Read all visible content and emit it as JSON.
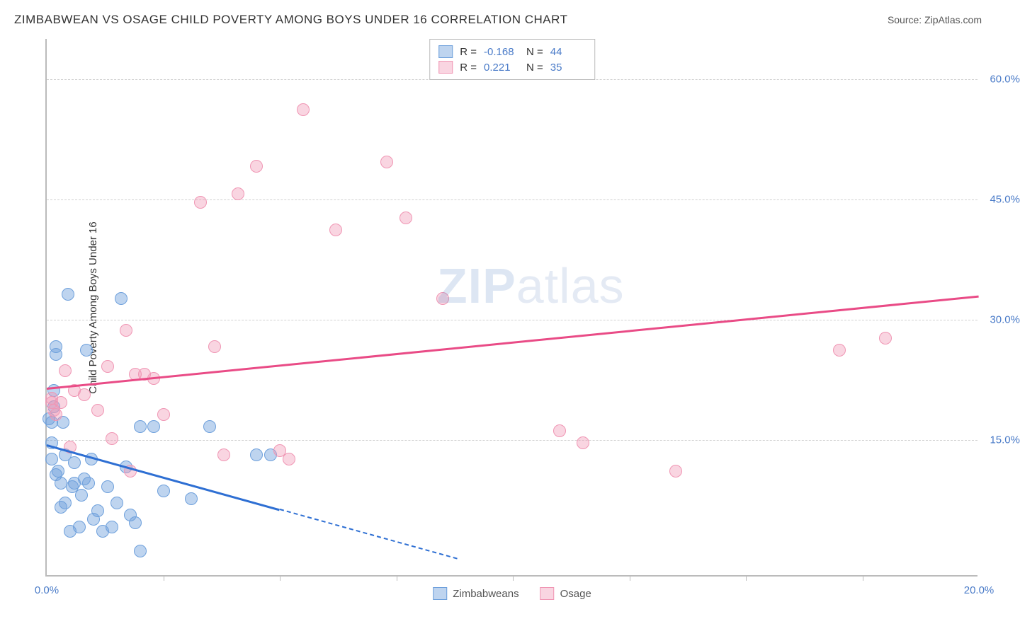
{
  "title": "ZIMBABWEAN VS OSAGE CHILD POVERTY AMONG BOYS UNDER 16 CORRELATION CHART",
  "source_prefix": "Source: ",
  "source_link": "ZipAtlas.com",
  "ylabel": "Child Poverty Among Boys Under 16",
  "watermark_bold": "ZIP",
  "watermark_rest": "atlas",
  "chart": {
    "type": "scatter",
    "xlim": [
      0,
      20
    ],
    "ylim": [
      -2,
      65
    ],
    "background_color": "#ffffff",
    "grid_color": "#d0d0d0",
    "axis_color": "#bbbbbb",
    "tick_label_color": "#4a7bc8",
    "tick_fontsize": 15,
    "yticks": [
      {
        "v": 15,
        "label": "15.0%"
      },
      {
        "v": 30,
        "label": "30.0%"
      },
      {
        "v": 45,
        "label": "45.0%"
      },
      {
        "v": 60,
        "label": "60.0%"
      }
    ],
    "xticks_major": [
      {
        "v": 0,
        "label": "0.0%"
      },
      {
        "v": 20,
        "label": "20.0%"
      }
    ],
    "xticks_minor": [
      2.5,
      5,
      7.5,
      10,
      12.5,
      15,
      17.5
    ],
    "series": [
      {
        "name": "Zimbabweans",
        "fill": "rgba(110,160,220,0.45)",
        "stroke": "#6ea0dc",
        "marker_radius": 9,
        "R": "-0.168",
        "N": "44",
        "trend": {
          "x1": 0,
          "y1": 14.5,
          "x2": 8.8,
          "y2": 0.3,
          "color": "#2e6fd3",
          "dashed_after_x": 5.0
        },
        "points": [
          [
            0.05,
            17.5
          ],
          [
            0.1,
            12.5
          ],
          [
            0.1,
            14.5
          ],
          [
            0.1,
            17.0
          ],
          [
            0.15,
            21.0
          ],
          [
            0.15,
            19.0
          ],
          [
            0.2,
            25.5
          ],
          [
            0.2,
            26.5
          ],
          [
            0.2,
            10.5
          ],
          [
            0.25,
            11.0
          ],
          [
            0.3,
            6.5
          ],
          [
            0.3,
            9.5
          ],
          [
            0.35,
            17.0
          ],
          [
            0.4,
            13.0
          ],
          [
            0.4,
            7.0
          ],
          [
            0.45,
            33.0
          ],
          [
            0.5,
            3.5
          ],
          [
            0.55,
            9.0
          ],
          [
            0.6,
            9.5
          ],
          [
            0.6,
            12.0
          ],
          [
            0.7,
            4.0
          ],
          [
            0.75,
            8.0
          ],
          [
            0.8,
            10.0
          ],
          [
            0.85,
            26.0
          ],
          [
            0.9,
            9.5
          ],
          [
            0.95,
            12.5
          ],
          [
            1.0,
            5.0
          ],
          [
            1.1,
            6.0
          ],
          [
            1.2,
            3.5
          ],
          [
            1.3,
            9.0
          ],
          [
            1.4,
            4.0
          ],
          [
            1.5,
            7.0
          ],
          [
            1.6,
            32.5
          ],
          [
            1.7,
            11.5
          ],
          [
            1.8,
            5.5
          ],
          [
            1.9,
            4.5
          ],
          [
            2.0,
            16.5
          ],
          [
            2.0,
            1.0
          ],
          [
            2.3,
            16.5
          ],
          [
            2.5,
            8.5
          ],
          [
            3.1,
            7.5
          ],
          [
            3.5,
            16.5
          ],
          [
            4.5,
            13.0
          ],
          [
            4.8,
            13.0
          ]
        ]
      },
      {
        "name": "Osage",
        "fill": "rgba(240,150,180,0.4)",
        "stroke": "#f096b4",
        "marker_radius": 9,
        "R": "0.221",
        "N": "35",
        "trend": {
          "x1": 0,
          "y1": 21.5,
          "x2": 20,
          "y2": 33.0,
          "color": "#e94b86"
        },
        "points": [
          [
            0.1,
            19.5
          ],
          [
            0.1,
            20.0
          ],
          [
            0.15,
            18.5
          ],
          [
            0.2,
            18.0
          ],
          [
            0.3,
            19.5
          ],
          [
            0.4,
            23.5
          ],
          [
            0.5,
            14.0
          ],
          [
            0.6,
            21.0
          ],
          [
            0.8,
            20.5
          ],
          [
            1.1,
            18.5
          ],
          [
            1.3,
            24.0
          ],
          [
            1.4,
            15.0
          ],
          [
            1.7,
            28.5
          ],
          [
            1.8,
            11.0
          ],
          [
            1.9,
            23.0
          ],
          [
            2.1,
            23.0
          ],
          [
            2.3,
            22.5
          ],
          [
            2.5,
            18.0
          ],
          [
            3.3,
            44.5
          ],
          [
            3.6,
            26.5
          ],
          [
            3.8,
            13.0
          ],
          [
            4.1,
            45.5
          ],
          [
            4.5,
            49.0
          ],
          [
            5.0,
            13.5
          ],
          [
            5.2,
            12.5
          ],
          [
            5.5,
            56.0
          ],
          [
            6.2,
            41.0
          ],
          [
            7.3,
            49.5
          ],
          [
            7.7,
            42.5
          ],
          [
            8.5,
            32.5
          ],
          [
            11.0,
            16.0
          ],
          [
            11.5,
            14.5
          ],
          [
            13.5,
            11.0
          ],
          [
            17.0,
            26.0
          ],
          [
            18.0,
            27.5
          ]
        ]
      }
    ]
  },
  "bottom_legend": [
    {
      "label": "Zimbabweans",
      "fill": "rgba(110,160,220,0.45)",
      "stroke": "#6ea0dc"
    },
    {
      "label": "Osage",
      "fill": "rgba(240,150,180,0.4)",
      "stroke": "#f096b4"
    }
  ]
}
